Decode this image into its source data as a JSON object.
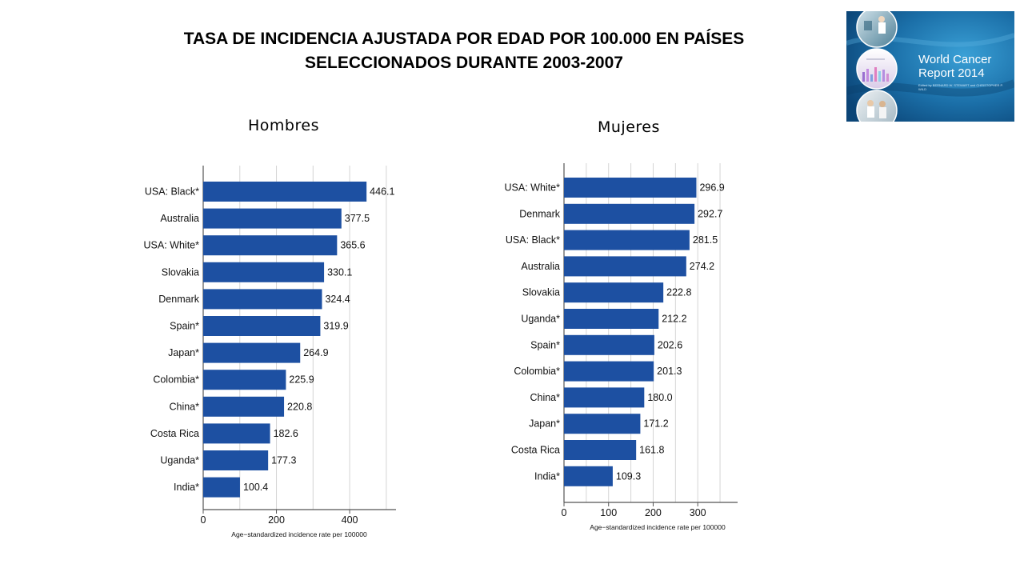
{
  "slide": {
    "title_line1": "TASA DE INCIDENCIA AJUSTADA POR EDAD POR 100.000 EN PAÍSES",
    "title_line2": "SELECCIONADOS DURANTE 2003-2007"
  },
  "panels": {
    "men_label": "Hombres",
    "women_label": "Mujeres"
  },
  "cover": {
    "title_line1": "World Cancer",
    "title_line2": "Report 2014",
    "editors": "Edited by BERNARD W. STEWART and CHRISTOPHER P. WILD",
    "colors": {
      "background": "#1e7fb8",
      "dark": "#0b4a7a",
      "text": "#ffffff"
    }
  },
  "chart_data": [
    {
      "type": "bar",
      "orientation": "horizontal",
      "panel": "Hombres",
      "categories": [
        "USA: Black*",
        "Australia",
        "USA: White*",
        "Slovakia",
        "Denmark",
        "Spain*",
        "Japan*",
        "Colombia*",
        "China*",
        "Costa Rica",
        "Uganda*",
        "India*"
      ],
      "values": [
        446.1,
        377.5,
        365.6,
        330.1,
        324.4,
        319.9,
        264.9,
        225.9,
        220.8,
        182.6,
        177.3,
        100.4
      ],
      "value_labels": [
        "446.1",
        "377.5",
        "365.6",
        "330.1",
        "324.4",
        "319.9",
        "264.9",
        "225.9",
        "220.8",
        "182.6",
        "177.3",
        "100.4"
      ],
      "xticks": [
        "0",
        "200",
        "400"
      ],
      "xtick_values": [
        0,
        200,
        400
      ],
      "xlim": [
        0,
        520
      ],
      "xlabel": "Age−standardized incidence rate per 100000",
      "grid": "vertical gridlines every 100",
      "bar_color": "#1d50a2"
    },
    {
      "type": "bar",
      "orientation": "horizontal",
      "panel": "Mujeres",
      "categories": [
        "USA: White*",
        "Denmark",
        "USA: Black*",
        "Australia",
        "Slovakia",
        "Uganda*",
        "Spain*",
        "Colombia*",
        "China*",
        "Japan*",
        "Costa Rica",
        "India*"
      ],
      "values": [
        296.9,
        292.7,
        281.5,
        274.2,
        222.8,
        212.2,
        202.6,
        201.3,
        180.0,
        171.2,
        161.8,
        109.3
      ],
      "value_labels": [
        "296.9",
        "292.7",
        "281.5",
        "274.2",
        "222.8",
        "212.2",
        "202.6",
        "201.3",
        "180.0",
        "171.2",
        "161.8",
        "109.3"
      ],
      "xticks": [
        "0",
        "100",
        "200",
        "300"
      ],
      "xtick_values": [
        0,
        100,
        200,
        300
      ],
      "xlim": [
        0,
        390
      ],
      "xlabel": "Age−standardized incidence rate per 100000",
      "grid": "vertical gridlines every 50",
      "bar_color": "#1d50a2"
    }
  ]
}
